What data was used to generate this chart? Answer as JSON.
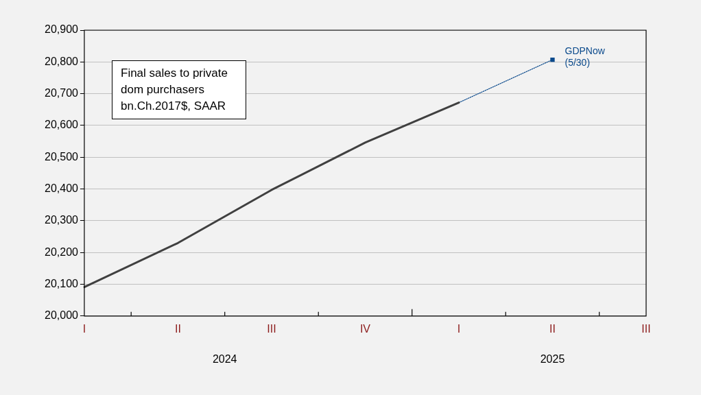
{
  "chart_data": {
    "type": "line",
    "title": "Final sales to private dom purchasers bn.Ch.2017$, SAAR",
    "categories": [
      "I",
      "II",
      "III",
      "IV",
      "I",
      "II",
      "III"
    ],
    "series": [
      {
        "color": "#404040",
        "values": [
          20091,
          20230,
          20397,
          20546,
          20672,
          null,
          null
        ]
      },
      {
        "color": "#0b4a8c",
        "line_style": "dotted",
        "marker": "none",
        "values": [
          null,
          null,
          null,
          null,
          20672,
          20807,
          null
        ]
      },
      {
        "type": "scatter",
        "name": "GDPNow (5/30)",
        "color": "#0b4a8c",
        "marker": "square",
        "values": [
          null,
          null,
          null,
          null,
          null,
          20807,
          null
        ]
      }
    ],
    "ylim": [
      20000,
      20900
    ],
    "yticks": [
      {
        "value": 20000,
        "label": "20,000"
      },
      {
        "value": 20100,
        "label": "20,100"
      },
      {
        "value": 20200,
        "label": "20,200"
      },
      {
        "value": 20300,
        "label": "20,300"
      },
      {
        "value": 20400,
        "label": "20,400"
      },
      {
        "value": 20500,
        "label": "20,500"
      },
      {
        "value": 20600,
        "label": "20,600"
      },
      {
        "value": 20700,
        "label": "20,700"
      },
      {
        "value": 20800,
        "label": "20,800"
      },
      {
        "value": 20900,
        "label": "20,900"
      }
    ],
    "grid": "y",
    "legend": false,
    "annotations": [
      "2024",
      "2025"
    ]
  }
}
